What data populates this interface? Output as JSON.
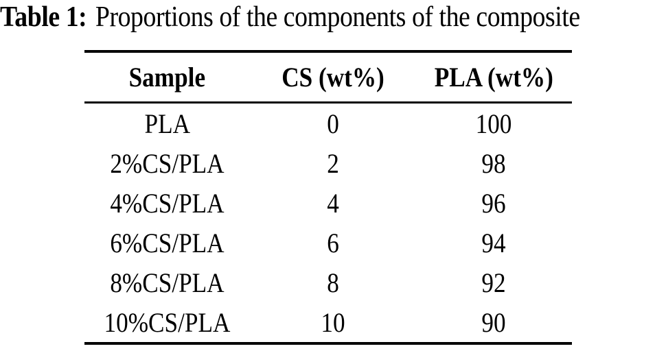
{
  "caption": {
    "label": "Table 1:",
    "text": "Proportions of the components of the composite"
  },
  "table": {
    "headers": [
      "Sample",
      "CS (wt%)",
      "PLA (wt%)"
    ],
    "rows": [
      [
        "PLA",
        "0",
        "100"
      ],
      [
        "2%CS/PLA",
        "2",
        "98"
      ],
      [
        "4%CS/PLA",
        "4",
        "96"
      ],
      [
        "6%CS/PLA",
        "6",
        "94"
      ],
      [
        "8%CS/PLA",
        "8",
        "92"
      ],
      [
        "10%CS/PLA",
        "10",
        "90"
      ]
    ]
  },
  "colors": {
    "background": "#ffffff",
    "text": "#000000",
    "rule": "#000000"
  }
}
